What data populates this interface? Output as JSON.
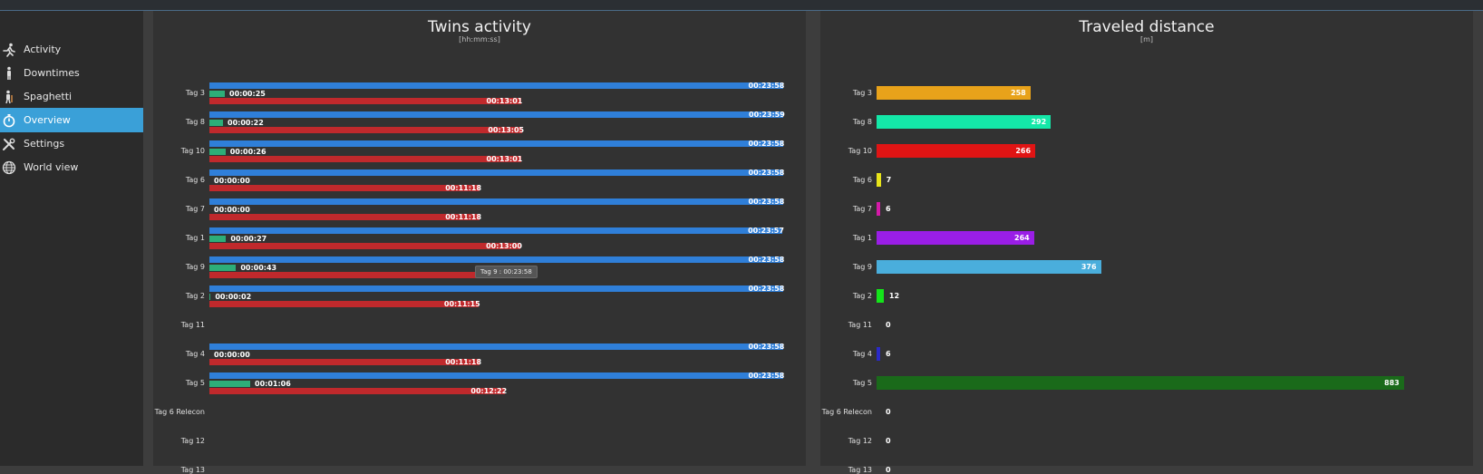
{
  "sidebar": {
    "items": [
      {
        "label": "Activity",
        "icon": "running-person-icon",
        "active": false
      },
      {
        "label": "Downtimes",
        "icon": "standing-person-icon",
        "active": false
      },
      {
        "label": "Spaghetti",
        "icon": "walking-person-icon",
        "active": false
      },
      {
        "label": "Overview",
        "icon": "stopwatch-icon",
        "active": true
      },
      {
        "label": "Settings",
        "icon": "tools-icon",
        "active": false
      },
      {
        "label": "World view",
        "icon": "globe-icon",
        "active": false
      }
    ]
  },
  "colors": {
    "accent": "#3aa0d8",
    "total_bar": "#2f7fd9",
    "idle_bar": "#c0292c",
    "active_bar": "#2dae78"
  },
  "activity_panel": {
    "title": "Twins activity",
    "subtitle": "[hh:mm:ss]",
    "tooltip": "Tag 9 : 00:23:58"
  },
  "distance_panel": {
    "title": "Traveled distance",
    "subtitle": "[m]"
  },
  "chart_data": [
    {
      "type": "bar",
      "orientation": "horizontal",
      "title": "Twins activity",
      "subtitle": "[hh:mm:ss]",
      "categories": [
        "Tag 3",
        "Tag 8",
        "Tag 10",
        "Tag 6",
        "Tag 7",
        "Tag 1",
        "Tag 9",
        "Tag 2",
        "Tag 11",
        "Tag 4",
        "Tag 5",
        "Tag 6 Relecon",
        "Tag 12",
        "Tag 13"
      ],
      "series": [
        {
          "name": "",
          "color": "#2f7fd9",
          "values": [
            "00:23:58",
            "00:23:59",
            "00:23:58",
            "00:23:58",
            "00:23:58",
            "00:23:57",
            "00:23:58",
            "00:23:58",
            null,
            "00:23:58",
            "00:23:58",
            null,
            null,
            null
          ]
        },
        {
          "name": "",
          "color": "#2dae78",
          "values": [
            "00:00:25",
            "00:00:22",
            "00:00:26",
            "00:00:00",
            "00:00:00",
            "00:00:27",
            "00:00:43",
            "00:00:02",
            null,
            "00:00:00",
            "00:01:06",
            null,
            null,
            null
          ]
        },
        {
          "name": "",
          "color": "#c0292c",
          "values": [
            "00:13:01",
            "00:13:05",
            "00:13:01",
            "00:11:18",
            "00:11:18",
            "00:13:00",
            "00:12:44",
            "00:11:15",
            null,
            "00:11:18",
            "00:12:22",
            null,
            null,
            null
          ]
        }
      ]
    },
    {
      "type": "bar",
      "orientation": "horizontal",
      "title": "Traveled distance",
      "subtitle": "[m]",
      "categories": [
        "Tag 3",
        "Tag 8",
        "Tag 10",
        "Tag 6",
        "Tag 7",
        "Tag 1",
        "Tag 9",
        "Tag 2",
        "Tag 11",
        "Tag 4",
        "Tag 5",
        "Tag 6 Relecon",
        "Tag 12",
        "Tag 13"
      ],
      "values": [
        258,
        292,
        266,
        7,
        6,
        264,
        376,
        12,
        0,
        6,
        883,
        0,
        0,
        0
      ],
      "colors": [
        "#e8a21a",
        "#14e8a8",
        "#e01414",
        "#e8e41a",
        "#d41aa8",
        "#9a1ee6",
        "#4aaedc",
        "#14e41a",
        "#888888",
        "#2a2ac8",
        "#1a6a1a",
        "#888888",
        "#888888",
        "#888888"
      ]
    }
  ]
}
